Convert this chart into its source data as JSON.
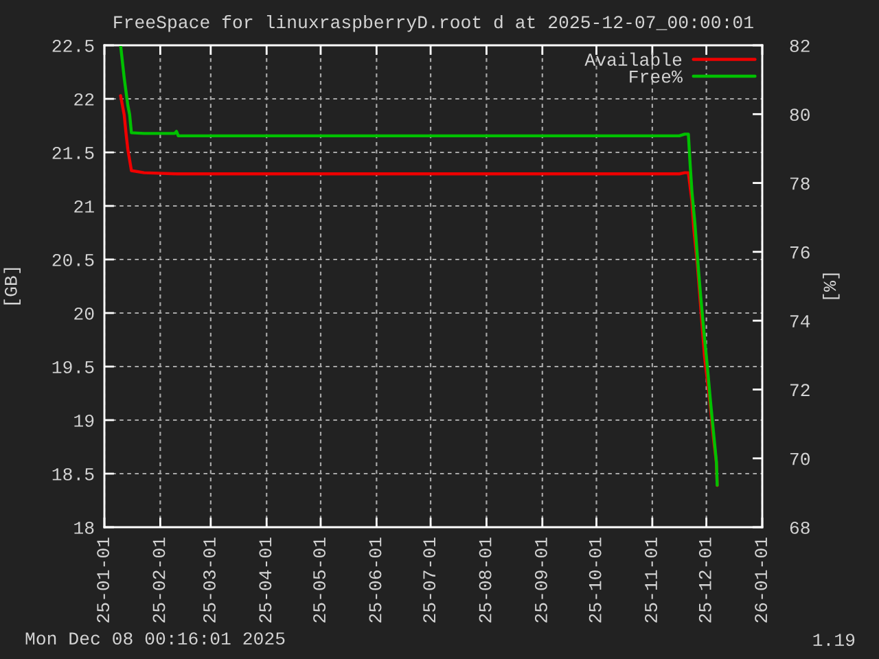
{
  "chart_data": {
    "type": "line",
    "title": "FreeSpace for linuxraspberryD.root d at 2025-12-07_00:00:01",
    "ylabel": "[GB]",
    "y2label": "[%]",
    "xlim": [
      "2025-01-01",
      "2026-01-01"
    ],
    "xticks": [
      {
        "value": "2025-01-01",
        "label": "25-01-01"
      },
      {
        "value": "2025-02-01",
        "label": "25-02-01"
      },
      {
        "value": "2025-03-01",
        "label": "25-03-01"
      },
      {
        "value": "2025-04-01",
        "label": "25-04-01"
      },
      {
        "value": "2025-05-01",
        "label": "25-05-01"
      },
      {
        "value": "2025-06-01",
        "label": "25-06-01"
      },
      {
        "value": "2025-07-01",
        "label": "25-07-01"
      },
      {
        "value": "2025-08-01",
        "label": "25-08-01"
      },
      {
        "value": "2025-09-01",
        "label": "25-09-01"
      },
      {
        "value": "2025-10-01",
        "label": "25-10-01"
      },
      {
        "value": "2025-11-01",
        "label": "25-11-01"
      },
      {
        "value": "2025-12-01",
        "label": "25-12-01"
      },
      {
        "value": "2026-01-01",
        "label": "26-01-01"
      }
    ],
    "ylim": [
      18,
      22.5
    ],
    "yticks": [
      18,
      18.5,
      19,
      19.5,
      20,
      20.5,
      21,
      21.5,
      22,
      22.5
    ],
    "y2lim": [
      68,
      82
    ],
    "y2ticks": [
      68,
      70,
      72,
      74,
      76,
      78,
      80,
      82
    ],
    "grid": true,
    "legend": "top right",
    "series": [
      {
        "name": "Available",
        "color": "#ee0000",
        "x": [
          "2025-01-10",
          "2025-01-12",
          "2025-01-13",
          "2025-01-14",
          "2025-01-16",
          "2025-01-23",
          "2025-02-10",
          "2025-11-16",
          "2025-11-19",
          "2025-11-21",
          "2025-11-23",
          "2025-11-24",
          "2025-11-26",
          "2025-11-28",
          "2025-11-30",
          "2025-12-03",
          "2025-12-05",
          "2025-12-06T12:00",
          "2025-12-07"
        ],
        "values": [
          22.03,
          21.85,
          21.68,
          21.53,
          21.33,
          21.31,
          21.3,
          21.3,
          21.31,
          21.31,
          21.04,
          20.79,
          20.45,
          20.02,
          19.59,
          19.16,
          18.82,
          18.61,
          18.39
        ]
      },
      {
        "name": "Free%",
        "color": "#00c000",
        "axis": "y2",
        "x": [
          "2025-01-10",
          "2025-01-12",
          "2025-01-14",
          "2025-01-15",
          "2025-01-16",
          "2025-01-23",
          "2025-02-09",
          "2025-02-10",
          "2025-02-11",
          "2025-11-16",
          "2025-11-19",
          "2025-11-21",
          "2025-11-22",
          "2025-11-23",
          "2025-11-24T16:00",
          "2025-11-26",
          "2025-11-27T16:00",
          "2025-11-29T12:00",
          "2025-12-01T12:00",
          "2025-12-03T08:00",
          "2025-12-05T08:00",
          "2025-12-06T14:00",
          "2025-12-07"
        ],
        "values": [
          82,
          81.05,
          80.26,
          79.99,
          79.46,
          79.44,
          79.44,
          79.5,
          79.37,
          79.37,
          79.42,
          79.42,
          78.53,
          77.73,
          76.8,
          75.87,
          74.81,
          73.74,
          72.68,
          71.62,
          70.55,
          69.89,
          69.22
        ]
      }
    ],
    "annotations": [
      "Mon Dec 08 00:16:01 2025",
      "1.19"
    ]
  }
}
